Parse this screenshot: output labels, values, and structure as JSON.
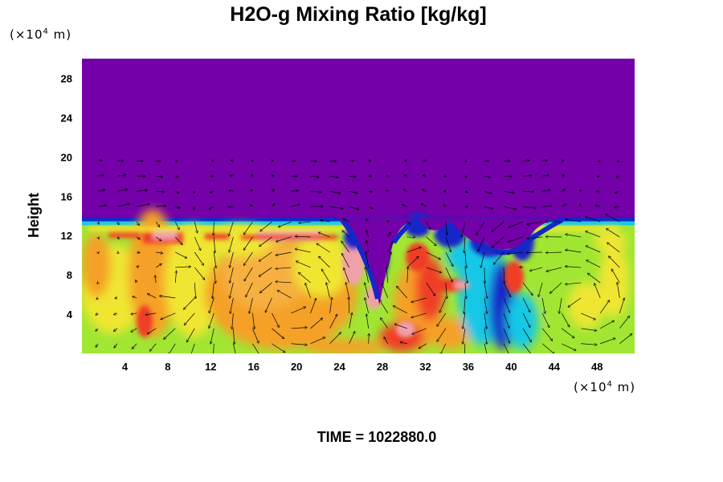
{
  "chart_data": {
    "type": "heatmap",
    "title": "H2O-g Mixing Ratio [kg/kg]",
    "xlabel": "",
    "ylabel": "Height",
    "x_unit_prefix": "(×10",
    "x_unit_exp": "4",
    "x_unit_suffix": " m)",
    "y_unit_prefix": "(×10",
    "y_unit_exp": "4",
    "y_unit_suffix": " m)",
    "xlim": [
      0,
      51.5
    ],
    "ylim": [
      0,
      30
    ],
    "xticks": [
      4,
      8,
      12,
      16,
      20,
      24,
      28,
      32,
      36,
      40,
      44,
      48
    ],
    "yticks": [
      4,
      8,
      12,
      16,
      20,
      24,
      28
    ],
    "xtick_labels": [
      "4",
      "8",
      "12",
      "16",
      "20",
      "24",
      "28",
      "32",
      "36",
      "40",
      "44",
      "48"
    ],
    "ytick_labels": [
      "4",
      "8",
      "12",
      "16",
      "20",
      "24",
      "28"
    ],
    "time_label": "TIME = 1022880.0",
    "upper_layer_color": "#7300a8",
    "moist_layer_top": 13.6,
    "colors": {
      "dry": "#7300a8",
      "deep_blue": "#1428c8",
      "cyan": "#18c8e6",
      "green": "#a0e632",
      "yellow": "#f0e632",
      "orange": "#f5a028",
      "red": "#f03c28",
      "pink": "#f0a0a8"
    },
    "vector_field_shown": true,
    "grid": false
  }
}
